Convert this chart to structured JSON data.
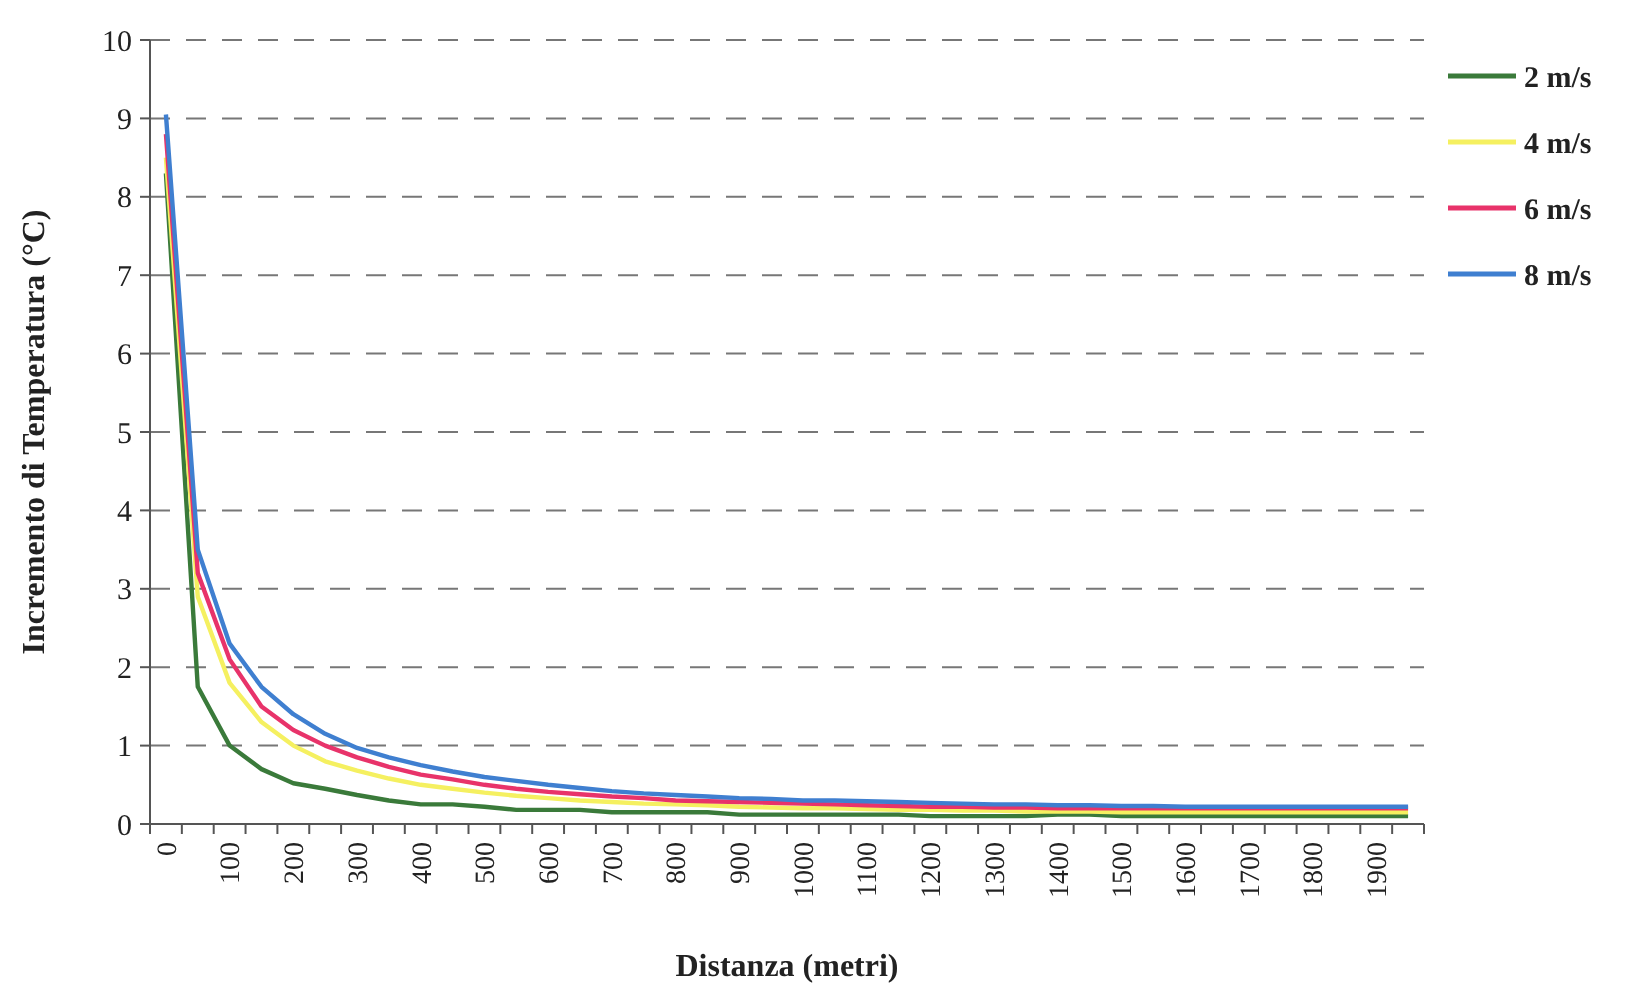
{
  "chart_data": {
    "type": "line",
    "xlabel": "Distanza (metri)",
    "ylabel": "Incremento di Temperatura (°C)",
    "categories": [
      "0",
      null,
      "100",
      null,
      "200",
      null,
      "300",
      null,
      "400",
      null,
      "500",
      null,
      "600",
      null,
      "700",
      null,
      "800",
      null,
      "900",
      null,
      "1000",
      null,
      "1100",
      null,
      "1200",
      null,
      "1300",
      null,
      "1400",
      null,
      "1500",
      null,
      "1600",
      null,
      "1700",
      null,
      "1800",
      null,
      "1900",
      null
    ],
    "ylim": [
      0,
      10
    ],
    "yticks": [
      0,
      1,
      2,
      3,
      4,
      5,
      6,
      7,
      8,
      9,
      10
    ],
    "grid": "y",
    "legend": "right",
    "marker": "none",
    "line_style": "solid",
    "series": [
      {
        "name": "2 m/s",
        "color": "#3a7a3a",
        "values": [
          8.3,
          1.75,
          1.0,
          0.7,
          0.52,
          0.45,
          0.37,
          0.3,
          0.25,
          0.25,
          0.22,
          0.18,
          0.18,
          0.18,
          0.15,
          0.15,
          0.15,
          0.15,
          0.12,
          0.12,
          0.12,
          0.12,
          0.12,
          0.12,
          0.1,
          0.1,
          0.1,
          0.1,
          0.12,
          0.12,
          0.1,
          0.1,
          0.1,
          0.1,
          0.1,
          0.1,
          0.1,
          0.1,
          0.1,
          0.1
        ]
      },
      {
        "name": "4 m/s",
        "color": "#f5f060",
        "values": [
          8.5,
          2.9,
          1.8,
          1.3,
          1.0,
          0.8,
          0.68,
          0.58,
          0.5,
          0.45,
          0.4,
          0.36,
          0.33,
          0.3,
          0.28,
          0.26,
          0.25,
          0.24,
          0.22,
          0.21,
          0.2,
          0.2,
          0.19,
          0.18,
          0.18,
          0.17,
          0.17,
          0.16,
          0.16,
          0.16,
          0.15,
          0.15,
          0.15,
          0.15,
          0.15,
          0.15,
          0.15,
          0.15,
          0.15,
          0.15
        ]
      },
      {
        "name": "6 m/s",
        "color": "#e8336a",
        "values": [
          8.8,
          3.2,
          2.1,
          1.5,
          1.2,
          1.0,
          0.85,
          0.73,
          0.63,
          0.57,
          0.5,
          0.45,
          0.41,
          0.38,
          0.35,
          0.33,
          0.3,
          0.29,
          0.28,
          0.27,
          0.26,
          0.25,
          0.24,
          0.23,
          0.22,
          0.22,
          0.21,
          0.21,
          0.2,
          0.2,
          0.2,
          0.2,
          0.2,
          0.2,
          0.2,
          0.2,
          0.2,
          0.2,
          0.2,
          0.2
        ]
      },
      {
        "name": "8 m/s",
        "color": "#3f7fd0",
        "values": [
          9.05,
          3.5,
          2.3,
          1.75,
          1.4,
          1.15,
          0.97,
          0.85,
          0.75,
          0.67,
          0.6,
          0.55,
          0.5,
          0.46,
          0.42,
          0.39,
          0.37,
          0.35,
          0.33,
          0.32,
          0.3,
          0.3,
          0.29,
          0.28,
          0.27,
          0.26,
          0.25,
          0.25,
          0.24,
          0.24,
          0.23,
          0.23,
          0.22,
          0.22,
          0.22,
          0.22,
          0.22,
          0.22,
          0.22,
          0.22
        ]
      }
    ]
  }
}
